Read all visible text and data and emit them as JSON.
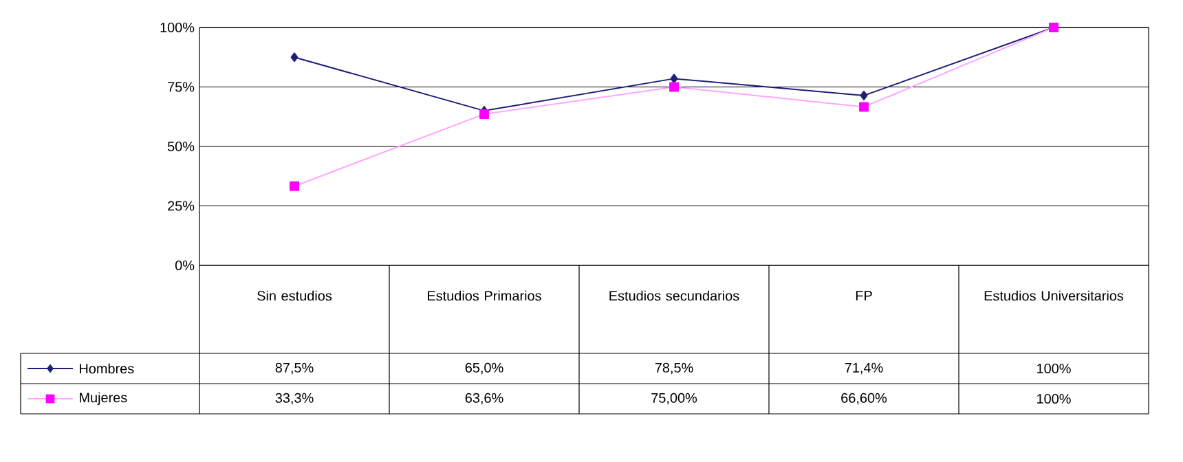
{
  "chart_data": {
    "type": "line",
    "categories": [
      "Sin estudios",
      "Estudios Primarios",
      "Estudios secundarios",
      "FP",
      "Estudios Universitarios"
    ],
    "series": [
      {
        "name": "Hombres",
        "color": "#1f1f7a",
        "marker": "diamond",
        "values": [
          87.5,
          65.0,
          78.5,
          71.4,
          100
        ],
        "value_labels": [
          "87,5%",
          "65,0%",
          "78,5%",
          "71,4%",
          "100%"
        ]
      },
      {
        "name": "Mujeres",
        "color": "#ff00ff",
        "marker": "square",
        "values": [
          33.3,
          63.6,
          75.0,
          66.6,
          100
        ],
        "value_labels": [
          "33,3%",
          "63,6%",
          "75,00%",
          "66,60%",
          "100%"
        ]
      }
    ],
    "ylim": [
      0,
      100
    ],
    "yticks": [
      {
        "value": 0,
        "label": "0%"
      },
      {
        "value": 25,
        "label": "25%"
      },
      {
        "value": 50,
        "label": "50%"
      },
      {
        "value": 75,
        "label": "75%"
      },
      {
        "value": 100,
        "label": "100%"
      }
    ],
    "grid": "y",
    "legend": "bottom left"
  }
}
